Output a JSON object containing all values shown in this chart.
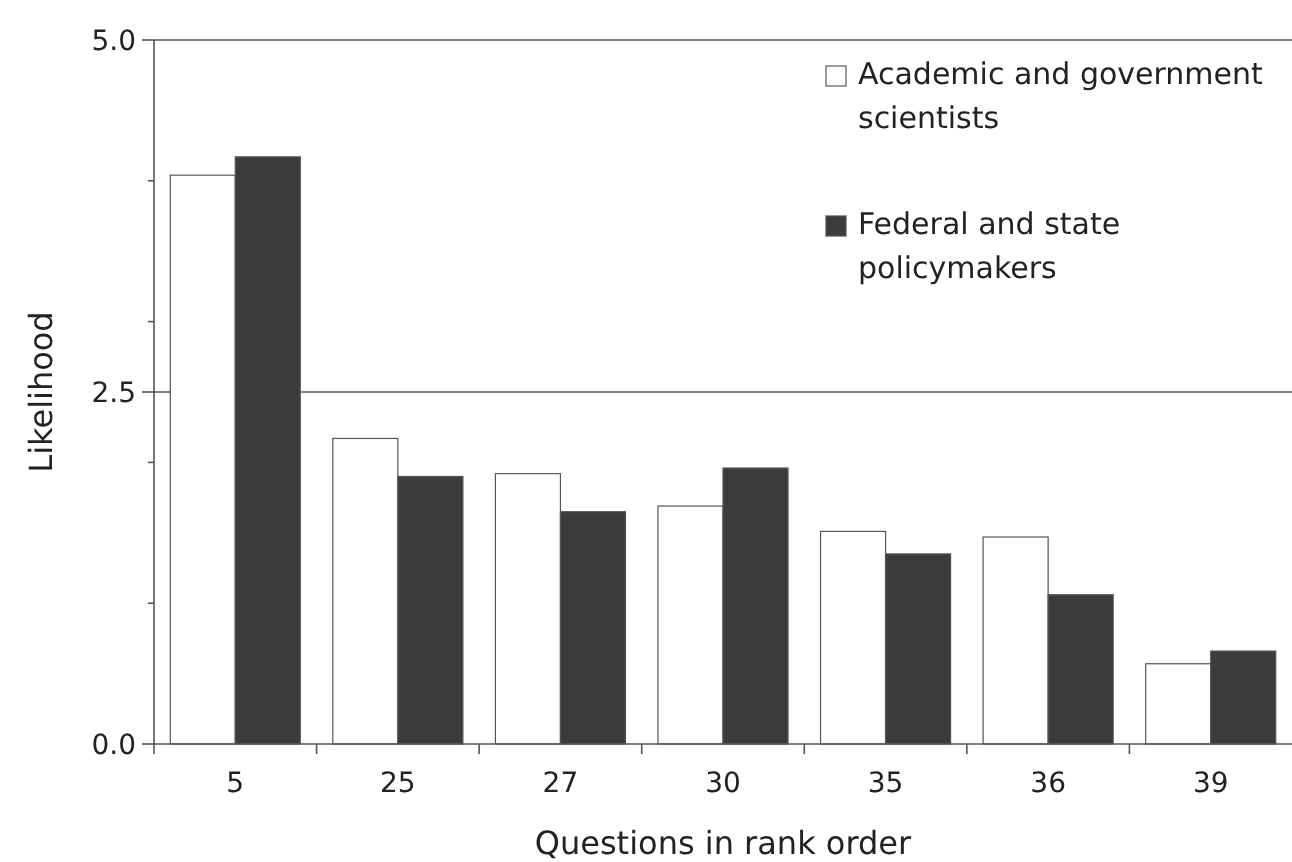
{
  "chart_data": {
    "type": "bar",
    "xlabel": "Questions in rank order",
    "ylabel": "Likelihood",
    "categories": [
      "5",
      "25",
      "27",
      "30",
      "35",
      "36",
      "39"
    ],
    "series": [
      {
        "name": "Academic and government scientists",
        "color": "#ffffff",
        "values": [
          4.04,
          2.17,
          1.92,
          1.69,
          1.51,
          1.47,
          0.57
        ]
      },
      {
        "name": "Federal and state policymakers",
        "color": "#3b3b3b",
        "values": [
          4.17,
          1.9,
          1.65,
          1.96,
          1.35,
          1.06,
          0.66
        ]
      }
    ],
    "ylim": [
      0,
      5
    ],
    "yticks": [
      {
        "value": 0,
        "label": "0.0"
      },
      {
        "value": 1,
        "label": null
      },
      {
        "value": 2,
        "label": null
      },
      {
        "value": 2.5,
        "label": "2.5"
      },
      {
        "value": 3,
        "label": null
      },
      {
        "value": 4,
        "label": null
      },
      {
        "value": 5,
        "label": "5.0"
      }
    ],
    "grid": "y",
    "legend": "top right"
  }
}
